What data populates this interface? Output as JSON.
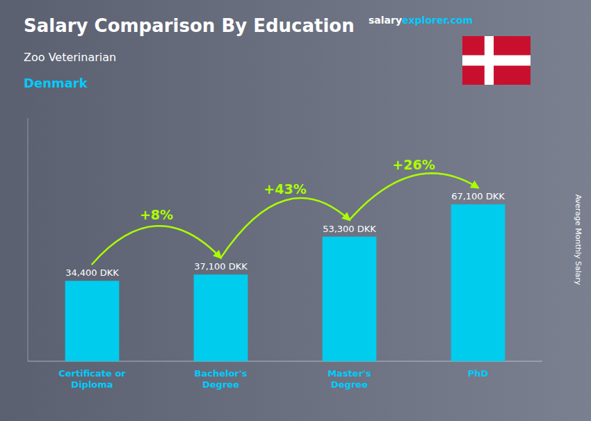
{
  "chart_data": {
    "type": "bar",
    "title": "Salary Comparison By Education",
    "subtitle": "Zoo Veterinarian",
    "country": "Denmark",
    "brand": [
      "salary",
      "explorer",
      ".com"
    ],
    "y_label": "Average Monthly Salary",
    "categories": [
      "Certificate or\nDiploma",
      "Bachelor's\nDegree",
      "Master's\nDegree",
      "PhD"
    ],
    "values": [
      34400,
      37100,
      53300,
      67100
    ],
    "value_labels": [
      "34,400 DKK",
      "37,100 DKK",
      "53,300 DKK",
      "67,100 DKK"
    ],
    "pct_changes": [
      "+8%",
      "+43%",
      "+26%"
    ],
    "color": "#00ccee",
    "ylim": [
      0,
      104005
    ],
    "data_labels": true,
    "tick_labels": "x",
    "grid": false
  }
}
